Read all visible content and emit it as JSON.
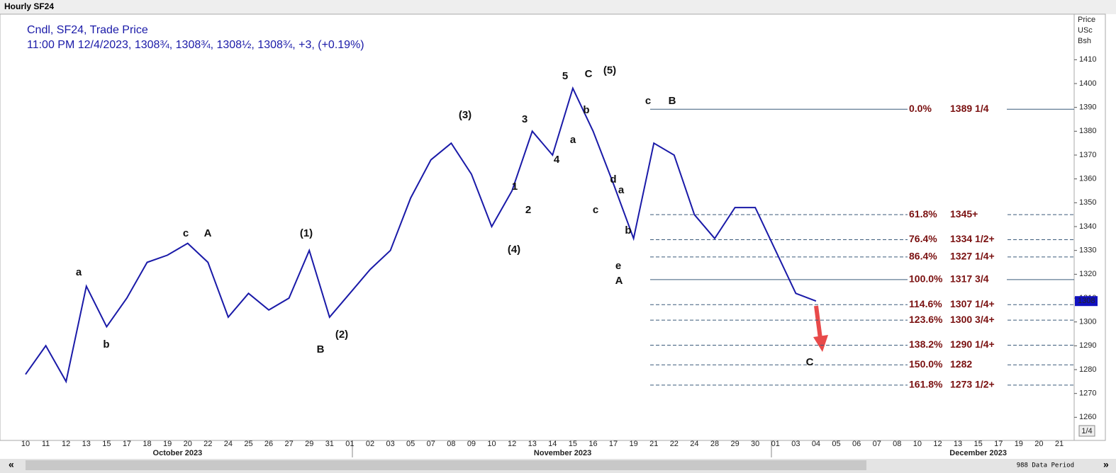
{
  "chart_data": {
    "type": "line",
    "title": "Hourly SF24",
    "legend_line1": "Cndl, SF24, Trade Price",
    "legend_line2": "11:00 PM 12/4/2023, 1308¾, 1308¾, 1308½, 1308¾, +3, (+0.19%)",
    "y_axis_label": [
      "Price",
      "USc",
      "Bsh"
    ],
    "price_tag": "1308",
    "footer": "988 Data Period",
    "scale_button": "1/4",
    "categories": [
      "10",
      "11",
      "12",
      "13",
      "15",
      "17",
      "18",
      "19",
      "20",
      "22",
      "24",
      "25",
      "26",
      "27",
      "29",
      "31",
      "01",
      "02",
      "03",
      "05",
      "07",
      "08",
      "09",
      "10",
      "12",
      "13",
      "14",
      "15",
      "16",
      "17",
      "19",
      "21",
      "22",
      "24",
      "28",
      "29",
      "30",
      "01",
      "03",
      "04",
      "05",
      "06",
      "07",
      "08",
      "10",
      "12",
      "13",
      "15",
      "17",
      "19",
      "20",
      "21"
    ],
    "months": [
      "October 2023",
      "November 2023",
      "December 2023"
    ],
    "series": [
      {
        "name": "SF24",
        "color": "#1a1aa8",
        "values": [
          1278,
          1290,
          1275,
          1315,
          1298,
          1310,
          1325,
          1328,
          1333,
          1325,
          1302,
          1312,
          1305,
          1310,
          1330,
          1302,
          1312,
          1322,
          1330,
          1352,
          1368,
          1375,
          1362,
          1340,
          1355,
          1380,
          1370,
          1398,
          1380,
          1358,
          1335,
          1375,
          1370,
          1345,
          1335,
          1348,
          1348,
          1330,
          1312,
          1308.75,
          null,
          null,
          null,
          null,
          null,
          null,
          null,
          null,
          null,
          null,
          null,
          null
        ]
      }
    ],
    "ylim": [
      1250,
      1430
    ],
    "yticks": [
      1260,
      1270,
      1280,
      1290,
      1300,
      1310,
      1320,
      1330,
      1340,
      1350,
      1360,
      1370,
      1380,
      1390,
      1400,
      1410
    ],
    "fib_levels": [
      {
        "pct": "0.0%",
        "value": 1389.25,
        "label": "1389 1/4",
        "solid": true
      },
      {
        "pct": "61.8%",
        "value": 1345,
        "label": "1345+",
        "solid": false
      },
      {
        "pct": "76.4%",
        "value": 1334.5,
        "label": "1334 1/2+",
        "solid": false
      },
      {
        "pct": "86.4%",
        "value": 1327.25,
        "label": "1327 1/4+",
        "solid": false
      },
      {
        "pct": "100.0%",
        "value": 1317.75,
        "label": "1317 3/4",
        "solid": true
      },
      {
        "pct": "114.6%",
        "value": 1307.25,
        "label": "1307 1/4+",
        "solid": false
      },
      {
        "pct": "123.6%",
        "value": 1300.75,
        "label": "1300 3/4+",
        "solid": false
      },
      {
        "pct": "138.2%",
        "value": 1290.25,
        "label": "1290 1/4+",
        "solid": false
      },
      {
        "pct": "150.0%",
        "value": 1282,
        "label": "1282",
        "solid": false
      },
      {
        "pct": "161.8%",
        "value": 1273.5,
        "label": "1273 1/2+",
        "solid": false
      }
    ],
    "annotations": [
      "a",
      "b",
      "c",
      "A",
      "(1)",
      "B",
      "(2)",
      "(3)",
      "3",
      "1",
      "2",
      "(4)",
      "4",
      "5",
      "a",
      "b",
      "C",
      "(5)",
      "d",
      "a",
      "c",
      "b",
      "e",
      "A",
      "c",
      "B",
      "C"
    ]
  }
}
